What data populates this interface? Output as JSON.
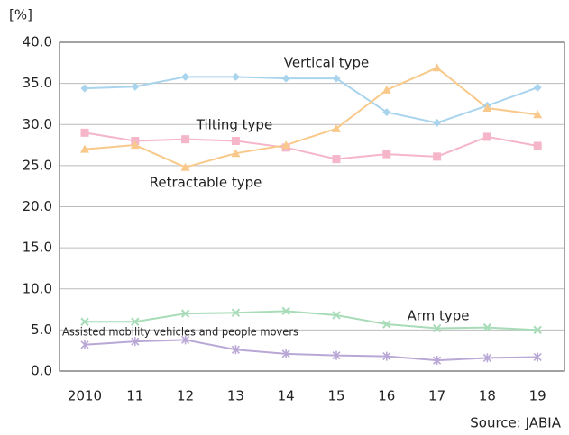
{
  "chart_data": {
    "type": "line",
    "ylabel": "[%]",
    "source": "Source: JABIA",
    "categories": [
      "2010",
      "11",
      "12",
      "13",
      "14",
      "15",
      "16",
      "17",
      "18",
      "19"
    ],
    "series": [
      {
        "name": "Vertical type",
        "color": "#a9d4ee",
        "marker": "diamond",
        "values": [
          34.4,
          34.6,
          35.8,
          35.8,
          35.6,
          35.6,
          31.5,
          30.2,
          32.3,
          34.5
        ]
      },
      {
        "name": "Tilting type",
        "color": "#f4b6c8",
        "marker": "square",
        "values": [
          29.0,
          28.0,
          28.2,
          28.0,
          27.2,
          25.8,
          26.4,
          26.1,
          28.5,
          27.4
        ]
      },
      {
        "name": "Retractable type",
        "color": "#f8c98a",
        "marker": "triangle",
        "values": [
          27.0,
          27.5,
          24.8,
          26.5,
          27.5,
          29.5,
          34.2,
          36.9,
          32.0,
          31.2
        ]
      },
      {
        "name": "Arm type",
        "color": "#a8dcb8",
        "marker": "x",
        "values": [
          6.0,
          6.0,
          7.0,
          7.1,
          7.3,
          6.8,
          5.7,
          5.2,
          5.3,
          5.0
        ]
      },
      {
        "name": "Assisted mobility vehicles and people movers",
        "color": "#b9a8d6",
        "marker": "asterisk",
        "values": [
          3.2,
          3.6,
          3.8,
          2.6,
          2.1,
          1.9,
          1.8,
          1.3,
          1.6,
          1.7
        ]
      }
    ],
    "ylim": [
      0,
      40
    ],
    "yticks": [
      {
        "value": 0,
        "label": "0.0"
      },
      {
        "value": 5,
        "label": "5.0"
      },
      {
        "value": 10,
        "label": "10.0"
      },
      {
        "value": 15,
        "label": "15.0"
      },
      {
        "value": 20,
        "label": "20.0"
      },
      {
        "value": 25,
        "label": "25.0"
      },
      {
        "value": 30,
        "label": "30.0"
      },
      {
        "value": 35,
        "label": "35.0"
      },
      {
        "value": 40,
        "label": "40.0"
      }
    ],
    "grid": true
  }
}
